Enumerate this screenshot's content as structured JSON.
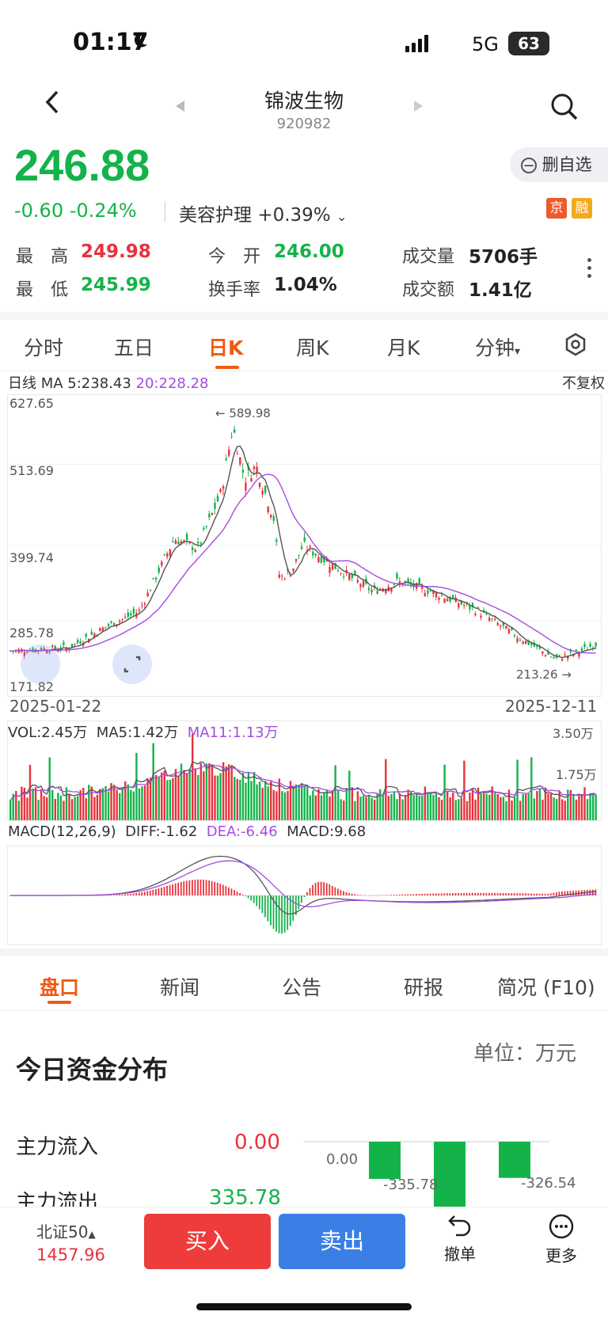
{
  "status": {
    "time": "01:17",
    "network": "5G",
    "battery": "63"
  },
  "header": {
    "title": "锦波生物",
    "code": "920982"
  },
  "quote": {
    "price": "246.88",
    "change": "-0.60",
    "change_pct": "-0.24%",
    "sector_name": "美容护理",
    "sector_change": "+0.39%",
    "watch_button": "删自选",
    "tags": [
      "京",
      "融"
    ]
  },
  "stats": {
    "high_label": "最　高",
    "high": "249.98",
    "low_label": "最　低",
    "low": "245.99",
    "open_label": "今　开",
    "open": "246.00",
    "turnover_label": "换手率",
    "turnover": "1.04%",
    "volume_label": "成交量",
    "volume": "5706手",
    "amount_label": "成交额",
    "amount": "1.41亿"
  },
  "chart_tabs": [
    "分时",
    "五日",
    "日K",
    "周K",
    "月K",
    "分钟"
  ],
  "kline": {
    "ma_label": "日线 MA 5:238.43",
    "ma20_label": "20:228.28",
    "adjust": "不复权",
    "y_ticks": [
      "627.65",
      "513.69",
      "399.74",
      "285.78",
      "171.82"
    ],
    "max_label": "589.98",
    "min_label": "213.26",
    "start_date": "2025-01-22",
    "end_date": "2025-12-11"
  },
  "volume": {
    "vol_label": "VOL:2.45万",
    "ma5_label": "MA5:1.42万",
    "ma11_label": "MA11:1.13万",
    "y_top": "3.50万",
    "y_mid": "1.75万"
  },
  "macd": {
    "title": "MACD(12,26,9)",
    "diff": "DIFF:-1.62",
    "dea": "DEA:-6.46",
    "macd": "MACD:9.68"
  },
  "bottom_tabs": [
    "盘口",
    "新闻",
    "公告",
    "研报",
    "简况 (F10)"
  ],
  "funds": {
    "title": "今日资金分布",
    "unit": "单位：万元",
    "inflow_label": "主力流入",
    "inflow": "0.00",
    "outflow_label": "主力流出",
    "outflow": "335.78",
    "bars": [
      "0.00",
      "-335.78",
      "-326.54"
    ]
  },
  "bottom_bar": {
    "index_name": "北证50",
    "index_value": "1457.96",
    "buy": "买入",
    "sell": "卖出",
    "cancel": "撤单",
    "more": "更多"
  },
  "colors": {
    "up": "#e8323c",
    "down": "#14b34a",
    "accent": "#f05a14",
    "ma20": "#a44ce0",
    "ma5": "#555555"
  }
}
